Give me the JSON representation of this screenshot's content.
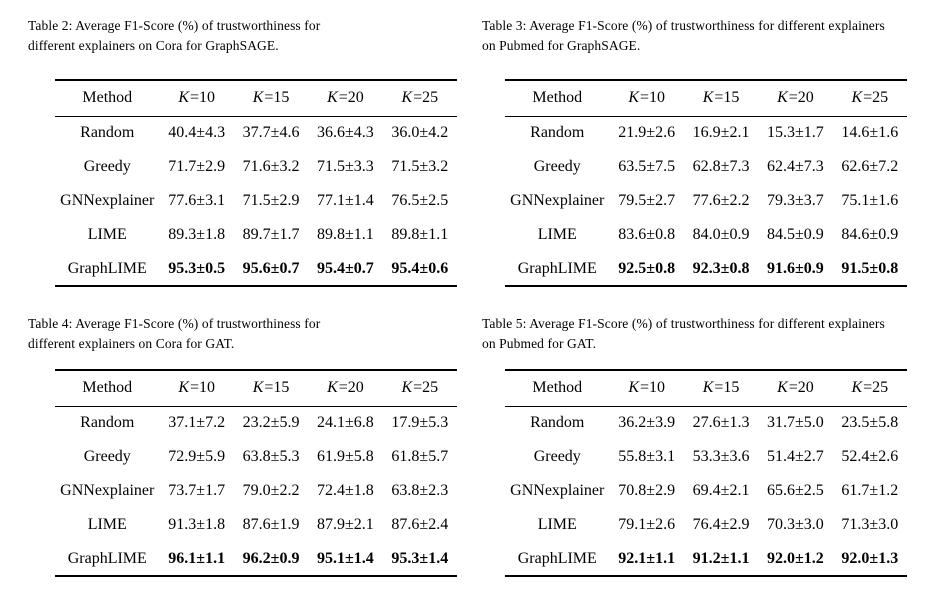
{
  "page": {
    "background_color": "#ffffff",
    "text_color": "#000000",
    "rule_color": "#000000"
  },
  "tables": [
    {
      "caption_lines": [
        "Table 2: Average F1-Score (%) of trustworthiness for",
        "different explainers on Cora for GraphSAGE."
      ],
      "columns": [
        "Method",
        "K=10",
        "K=15",
        "K=20",
        "K=25"
      ],
      "rows": [
        {
          "method": "Random",
          "values": [
            "40.4±4.3",
            "37.7±4.6",
            "36.6±4.3",
            "36.0±4.2"
          ],
          "bold": false
        },
        {
          "method": "Greedy",
          "values": [
            "71.7±2.9",
            "71.6±3.2",
            "71.5±3.3",
            "71.5±3.2"
          ],
          "bold": false
        },
        {
          "method": "GNNexplainer",
          "values": [
            "77.6±3.1",
            "71.5±2.9",
            "77.1±1.4",
            "76.5±2.5"
          ],
          "bold": false
        },
        {
          "method": "LIME",
          "values": [
            "89.3±1.8",
            "89.7±1.7",
            "89.8±1.1",
            "89.8±1.1"
          ],
          "bold": false
        },
        {
          "method": "GraphLIME",
          "values": [
            "95.3±0.5",
            "95.6±0.7",
            "95.4±0.7",
            "95.4±0.6"
          ],
          "bold": true
        }
      ]
    },
    {
      "caption_lines": [
        "Table 3: Average F1-Score (%) of trustworthiness for different explainers",
        "on Pubmed for GraphSAGE."
      ],
      "columns": [
        "Method",
        "K=10",
        "K=15",
        "K=20",
        "K=25"
      ],
      "rows": [
        {
          "method": "Random",
          "values": [
            "21.9±2.6",
            "16.9±2.1",
            "15.3±1.7",
            "14.6±1.6"
          ],
          "bold": false
        },
        {
          "method": "Greedy",
          "values": [
            "63.5±7.5",
            "62.8±7.3",
            "62.4±7.3",
            "62.6±7.2"
          ],
          "bold": false
        },
        {
          "method": "GNNexplainer",
          "values": [
            "79.5±2.7",
            "77.6±2.2",
            "79.3±3.7",
            "75.1±1.6"
          ],
          "bold": false
        },
        {
          "method": "LIME",
          "values": [
            "83.6±0.8",
            "84.0±0.9",
            "84.5±0.9",
            "84.6±0.9"
          ],
          "bold": false
        },
        {
          "method": "GraphLIME",
          "values": [
            "92.5±0.8",
            "92.3±0.8",
            "91.6±0.9",
            "91.5±0.8"
          ],
          "bold": true
        }
      ]
    },
    {
      "caption_lines": [
        "Table 4: Average F1-Score (%) of trustworthiness for",
        "different explainers on Cora for GAT."
      ],
      "columns": [
        "Method",
        "K=10",
        "K=15",
        "K=20",
        "K=25"
      ],
      "rows": [
        {
          "method": "Random",
          "values": [
            "37.1±7.2",
            "23.2±5.9",
            "24.1±6.8",
            "17.9±5.3"
          ],
          "bold": false
        },
        {
          "method": "Greedy",
          "values": [
            "72.9±5.9",
            "63.8±5.3",
            "61.9±5.8",
            "61.8±5.7"
          ],
          "bold": false
        },
        {
          "method": "GNNexplainer",
          "values": [
            "73.7±1.7",
            "79.0±2.2",
            "72.4±1.8",
            "63.8±2.3"
          ],
          "bold": false
        },
        {
          "method": "LIME",
          "values": [
            "91.3±1.8",
            "87.6±1.9",
            "87.9±2.1",
            "87.6±2.4"
          ],
          "bold": false
        },
        {
          "method": "GraphLIME",
          "values": [
            "96.1±1.1",
            "96.2±0.9",
            "95.1±1.4",
            "95.3±1.4"
          ],
          "bold": true
        }
      ]
    },
    {
      "caption_lines": [
        "Table 5: Average F1-Score (%) of trustworthiness for different explainers",
        "on Pubmed for GAT."
      ],
      "columns": [
        "Method",
        "K=10",
        "K=15",
        "K=20",
        "K=25"
      ],
      "rows": [
        {
          "method": "Random",
          "values": [
            "36.2±3.9",
            "27.6±1.3",
            "31.7±5.0",
            "23.5±5.8"
          ],
          "bold": false
        },
        {
          "method": "Greedy",
          "values": [
            "55.8±3.1",
            "53.3±3.6",
            "51.4±2.7",
            "52.4±2.6"
          ],
          "bold": false
        },
        {
          "method": "GNNexplainer",
          "values": [
            "70.8±2.9",
            "69.4±2.1",
            "65.6±2.5",
            "61.7±1.2"
          ],
          "bold": false
        },
        {
          "method": "LIME",
          "values": [
            "79.1±2.6",
            "76.4±2.9",
            "70.3±3.0",
            "71.3±3.0"
          ],
          "bold": false
        },
        {
          "method": "GraphLIME",
          "values": [
            "92.1±1.1",
            "91.2±1.1",
            "92.0±1.2",
            "92.0±1.3"
          ],
          "bold": true
        }
      ]
    }
  ]
}
